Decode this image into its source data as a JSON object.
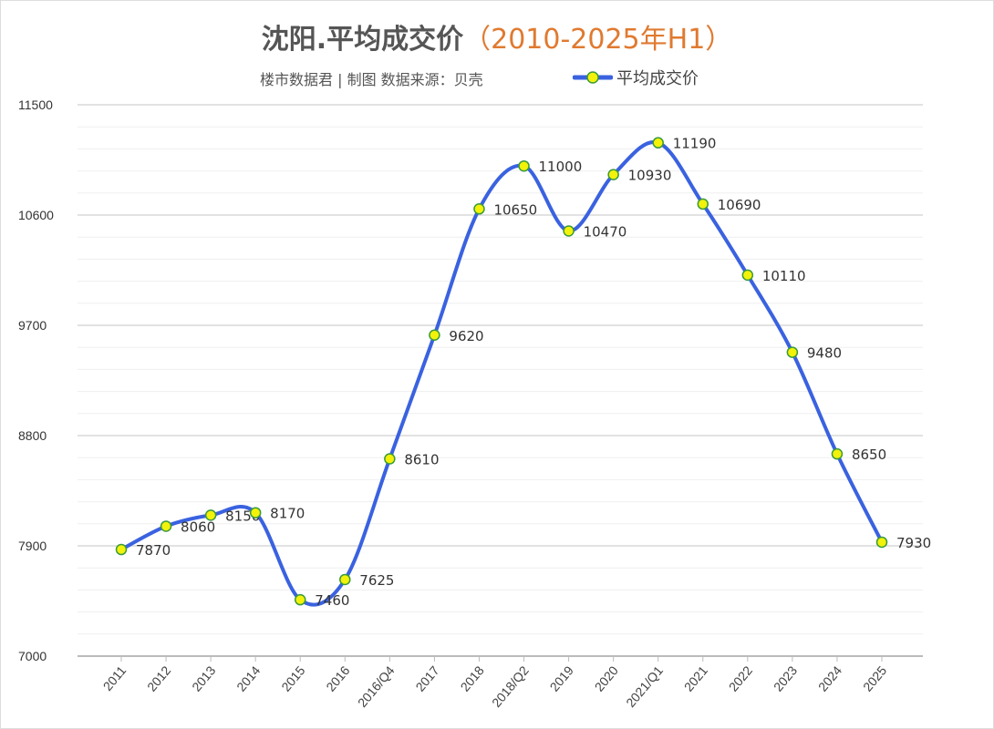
{
  "title": {
    "main": "沈阳.平均成交价",
    "paren_open": "（",
    "highlight": "2010-2025年H1",
    "paren_close": "）"
  },
  "subtitle": "楼市数据君 | 制图    数据来源：贝壳",
  "colors": {
    "line": "#3a62e0",
    "marker_fill": "#f2f20a",
    "marker_stroke": "#3a9a3a",
    "title_highlight": "#e07a30"
  },
  "chart_data": {
    "type": "line",
    "smooth": true,
    "title": "沈阳.平均成交价（2010-2025年H1）",
    "categories": [
      "2011",
      "2012",
      "2013",
      "2014",
      "2015",
      "2016",
      "2016/Q4",
      "2017",
      "2018",
      "2018/Q2",
      "2019",
      "2020",
      "2021/Q1",
      "2021",
      "2022",
      "2023",
      "2024",
      "2025"
    ],
    "series": [
      {
        "name": "平均成交价",
        "values": [
          7870,
          8060,
          8150,
          8170,
          7460,
          7625,
          8610,
          9620,
          10650,
          11000,
          10470,
          10930,
          11190,
          10690,
          10110,
          9480,
          8650,
          7930
        ]
      }
    ],
    "ylim": [
      7000,
      11500
    ],
    "yticks": [
      7000,
      7900,
      8800,
      9700,
      10600,
      11500
    ],
    "grid": true,
    "legend": "top-center",
    "data_labels": true
  }
}
